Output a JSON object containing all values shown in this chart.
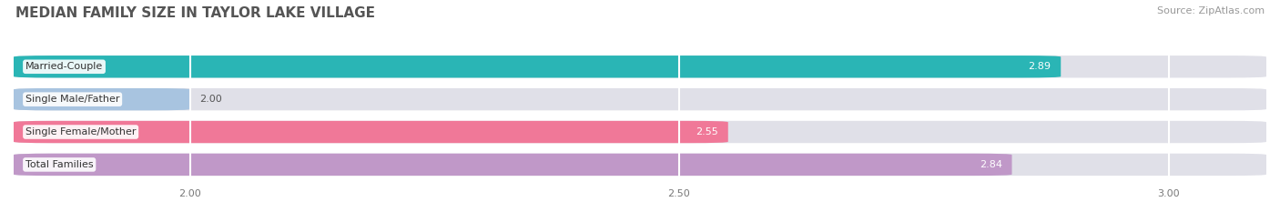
{
  "title": "MEDIAN FAMILY SIZE IN TAYLOR LAKE VILLAGE",
  "source": "Source: ZipAtlas.com",
  "categories": [
    "Married-Couple",
    "Single Male/Father",
    "Single Female/Mother",
    "Total Families"
  ],
  "values": [
    2.89,
    2.0,
    2.55,
    2.84
  ],
  "bar_colors": [
    "#2ab5b5",
    "#a8c4e0",
    "#f07898",
    "#c098c8"
  ],
  "bar_bg_color": "#e0e0e8",
  "xlim_min": 1.82,
  "xlim_max": 3.1,
  "xticks": [
    2.0,
    2.5,
    3.0
  ],
  "xtick_labels": [
    "2.00",
    "2.50",
    "3.00"
  ],
  "figsize": [
    14.06,
    2.33
  ],
  "dpi": 100,
  "title_fontsize": 11,
  "label_fontsize": 8,
  "value_fontsize": 8,
  "source_fontsize": 8,
  "title_color": "#555555",
  "background_color": "#ffffff",
  "value_color_inside": "#ffffff",
  "value_color_outside": "#555555",
  "bar_height": 0.68,
  "bar_gap": 0.32
}
